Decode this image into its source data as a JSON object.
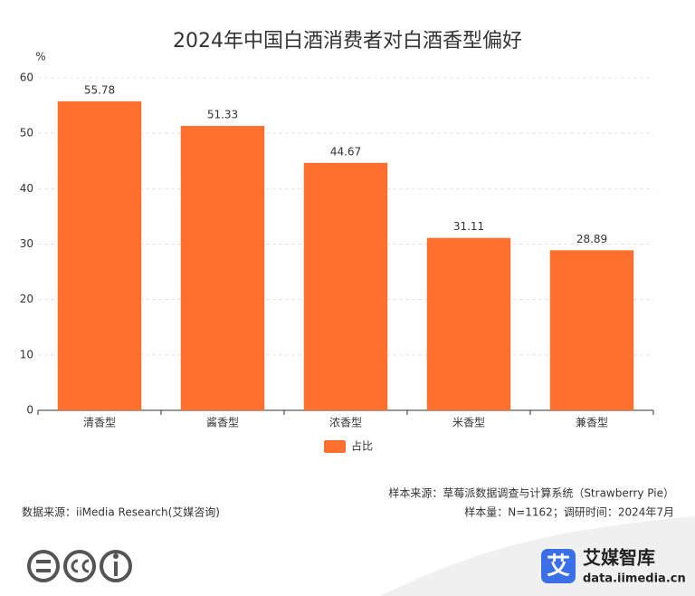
{
  "chart_data": {
    "type": "bar",
    "title": "2024年中国白酒消费者对白酒香型偏好",
    "y_unit": "%",
    "categories": [
      "清香型",
      "酱香型",
      "浓香型",
      "米香型",
      "兼香型"
    ],
    "series": [
      {
        "name": "占比",
        "color": "#ff6f2e",
        "values": [
          55.78,
          51.33,
          44.67,
          31.11,
          28.89
        ]
      }
    ],
    "ylim": [
      0,
      60
    ],
    "yticks": [
      0,
      10,
      20,
      30,
      40,
      50,
      60
    ],
    "grid": true,
    "legend": "bottom"
  },
  "footer": {
    "sample_source": "样本来源：草莓派数据调查与计算系统（Strawberry Pie）",
    "sample_size": "样本量：N=1162；调研时间：2024年7月",
    "data_source": "数据来源：iiMedia Research(艾媒咨询)"
  },
  "brand": {
    "icon": "艾",
    "name": "艾媒智库",
    "url": "data.iimedia.cn"
  }
}
